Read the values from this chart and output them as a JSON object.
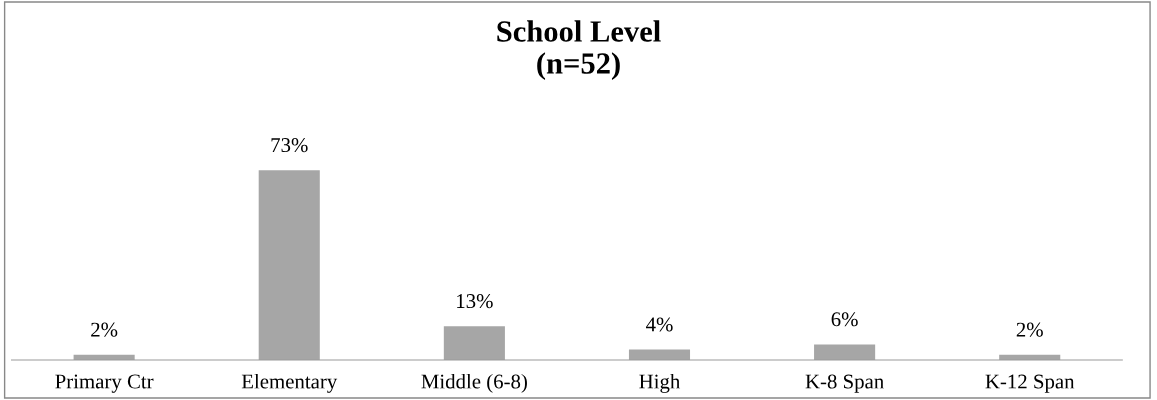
{
  "chart_data": {
    "type": "bar",
    "title": "School Level\n(n=52)",
    "categories": [
      "Primary Ctr",
      "Elementary",
      "Middle (6-8)",
      "High",
      "K-8 Span",
      "K-12 Span"
    ],
    "values": [
      2,
      73,
      13,
      4,
      6,
      2
    ],
    "value_labels": [
      "2%",
      "73%",
      "13%",
      "4%",
      "6%",
      "2%"
    ],
    "color": "#a6a6a6",
    "grid": false,
    "legend": false
  }
}
